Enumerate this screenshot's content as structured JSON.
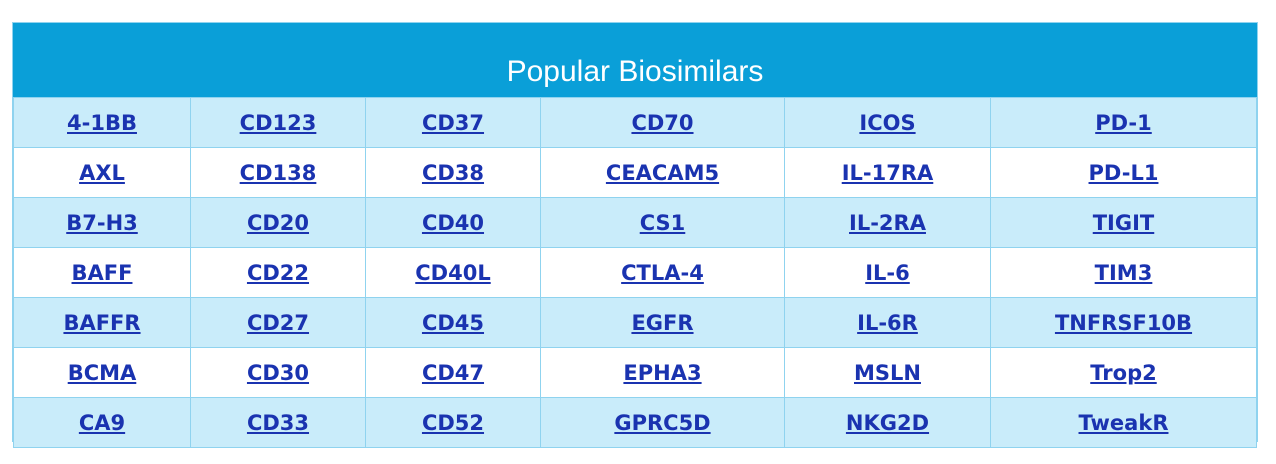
{
  "table": {
    "title": "Popular Biosimilars",
    "rows": [
      [
        "4-1BB",
        "CD123",
        "CD37",
        "CD70",
        "ICOS",
        "PD-1"
      ],
      [
        "AXL",
        "CD138",
        "CD38",
        "CEACAM5",
        "IL-17RA",
        "PD-L1"
      ],
      [
        "B7-H3",
        "CD20",
        "CD40",
        "CS1",
        "IL-2RA",
        "TIGIT"
      ],
      [
        "BAFF",
        "CD22",
        "CD40L",
        "CTLA-4",
        "IL-6",
        "TIM3"
      ],
      [
        "BAFFR",
        "CD27",
        "CD45",
        "EGFR",
        "IL-6R",
        "TNFRSF10B"
      ],
      [
        "BCMA",
        "CD30",
        "CD47",
        "EPHA3",
        "MSLN",
        "Trop2"
      ],
      [
        "CA9",
        "CD33",
        "CD52",
        "GPRC5D",
        "NKG2D",
        "TweakR"
      ]
    ]
  }
}
